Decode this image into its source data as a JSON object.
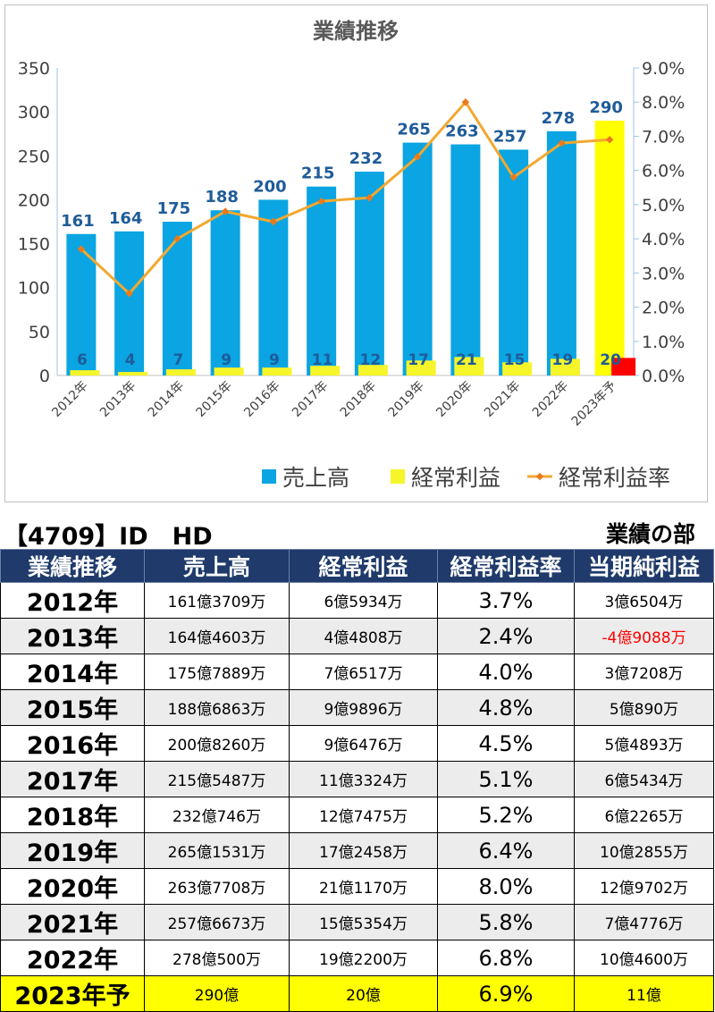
{
  "chart_data": {
    "type": "bar",
    "title": "業績推移",
    "categories": [
      "2012年",
      "2013年",
      "2014年",
      "2015年",
      "2016年",
      "2017年",
      "2018年",
      "2019年",
      "2020年",
      "2021年",
      "2022年",
      "2023年予"
    ],
    "series": [
      {
        "name": "売上高",
        "kind": "bar",
        "axis": "left",
        "color": "#0aa5e2",
        "values": [
          161,
          164,
          175,
          188,
          200,
          215,
          232,
          265,
          263,
          257,
          278,
          290
        ]
      },
      {
        "name": "経常利益",
        "kind": "bar",
        "axis": "left",
        "color": "#f5f52a",
        "values": [
          6,
          4,
          7,
          9,
          9,
          11,
          12,
          17,
          21,
          15,
          19,
          20
        ]
      },
      {
        "name": "経常利益率",
        "kind": "line",
        "axis": "right",
        "color": "#f2a830",
        "values": [
          3.7,
          2.4,
          4.0,
          4.8,
          4.5,
          5.1,
          5.2,
          6.4,
          8.0,
          5.8,
          6.8,
          6.9
        ]
      }
    ],
    "forecast_colors": {
      "sales": "#ffff00",
      "profit": "#ff0000"
    },
    "y_left": {
      "min": 0,
      "max": 350,
      "ticks": [
        "0",
        "50",
        "100",
        "150",
        "200",
        "250",
        "300",
        "350"
      ]
    },
    "y_right": {
      "min": 0,
      "max": 9,
      "ticks": [
        "0.0%",
        "1.0%",
        "2.0%",
        "3.0%",
        "4.0%",
        "5.0%",
        "6.0%",
        "7.0%",
        "8.0%",
        "9.0%"
      ]
    },
    "legend_position": "bottom-right",
    "grid": false
  },
  "caption": {
    "company": "【4709】ID　HD",
    "section": "業績の部"
  },
  "table": {
    "headers": [
      "業績推移",
      "売上高",
      "経常利益",
      "経常利益率",
      "当期純利益"
    ],
    "rows": [
      {
        "year": "2012年",
        "sales": "161億3709万",
        "profit": "6億5934万",
        "rate": "3.7%",
        "net": "3億6504万",
        "net_negative": false
      },
      {
        "year": "2013年",
        "sales": "164億4603万",
        "profit": "4億4808万",
        "rate": "2.4%",
        "net": "-4億9088万",
        "net_negative": true
      },
      {
        "year": "2014年",
        "sales": "175億7889万",
        "profit": "7億6517万",
        "rate": "4.0%",
        "net": "3億7208万",
        "net_negative": false
      },
      {
        "year": "2015年",
        "sales": "188億6863万",
        "profit": "9億9896万",
        "rate": "4.8%",
        "net": "5億890万",
        "net_negative": false
      },
      {
        "year": "2016年",
        "sales": "200億8260万",
        "profit": "9億6476万",
        "rate": "4.5%",
        "net": "5億4893万",
        "net_negative": false
      },
      {
        "year": "2017年",
        "sales": "215億5487万",
        "profit": "11億3324万",
        "rate": "5.1%",
        "net": "6億5434万",
        "net_negative": false
      },
      {
        "year": "2018年",
        "sales": "232億746万",
        "profit": "12億7475万",
        "rate": "5.2%",
        "net": "6億2265万",
        "net_negative": false
      },
      {
        "year": "2019年",
        "sales": "265億1531万",
        "profit": "17億2458万",
        "rate": "6.4%",
        "net": "10億2855万",
        "net_negative": false
      },
      {
        "year": "2020年",
        "sales": "263億7708万",
        "profit": "21億1170万",
        "rate": "8.0%",
        "net": "12億9702万",
        "net_negative": false
      },
      {
        "year": "2021年",
        "sales": "257億6673万",
        "profit": "15億5354万",
        "rate": "5.8%",
        "net": "7億4776万",
        "net_negative": false
      },
      {
        "year": "2022年",
        "sales": "278億500万",
        "profit": "19億2200万",
        "rate": "6.8%",
        "net": "10億4600万",
        "net_negative": false
      },
      {
        "year": "2023年予",
        "sales": "290億",
        "profit": "20億",
        "rate": "6.9%",
        "net": "11億",
        "net_negative": false,
        "forecast": true
      }
    ]
  }
}
